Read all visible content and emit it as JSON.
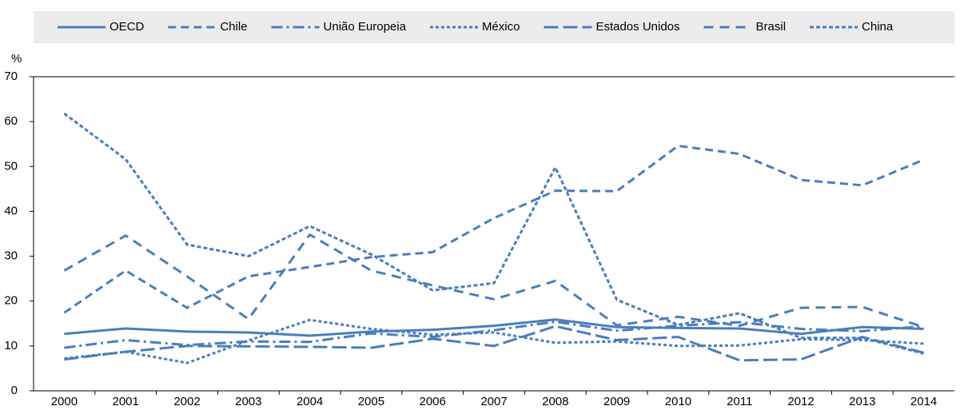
{
  "chart_data": {
    "type": "line",
    "y_unit": "%",
    "categories": [
      "2000",
      "2001",
      "2002",
      "2003",
      "2004",
      "2005",
      "2006",
      "2007",
      "2008",
      "2009",
      "2010",
      "2011",
      "2012",
      "2013",
      "2014"
    ],
    "ylim": [
      0,
      70
    ],
    "yticks": [
      0,
      10,
      20,
      30,
      40,
      50,
      60,
      70
    ],
    "grid": false,
    "legend": "top",
    "series": [
      {
        "name": "OECD",
        "color": "#4a7ebb",
        "dash": "",
        "values": [
          12.7,
          13.9,
          13.2,
          13,
          12.3,
          13.2,
          13.6,
          14.5,
          15.9,
          14.2,
          14,
          13.9,
          12.7,
          14.2,
          13.8
        ]
      },
      {
        "name": "Chile",
        "color": "#4a7ebb",
        "dash": "10,6",
        "values": [
          17.4,
          26.8,
          18.5,
          25.5,
          27.6,
          29.8,
          30.9,
          38.5,
          44.6,
          44.5,
          54.6,
          52.8,
          47,
          45.8,
          51.5
        ]
      },
      {
        "name": "União Europeia",
        "color": "#4a7ebb",
        "dash": "14,5,3,5",
        "values": [
          9.6,
          11.3,
          10.2,
          11,
          10.9,
          12.8,
          12,
          13.5,
          15.4,
          13.4,
          14.5,
          15.3,
          13.8,
          13.3,
          14.4
        ]
      },
      {
        "name": "México",
        "color": "#4a7ebb",
        "dash": "4,3",
        "values": [
          7.2,
          8.7,
          6.2,
          11.2,
          15.8,
          13.8,
          12.5,
          13,
          10.7,
          11,
          10,
          10.1,
          11.5,
          11.3,
          10.5
        ]
      },
      {
        "name": "Estados Unidos",
        "color": "#4a7ebb",
        "dash": "18,6",
        "values": [
          7,
          8.7,
          10,
          9.9,
          9.8,
          9.6,
          11.6,
          10,
          14.4,
          11.3,
          12,
          6.8,
          7,
          12,
          8.5
        ]
      },
      {
        "name": "Brasil",
        "color": "#4a7ebb",
        "dash": "12,8",
        "values": [
          26.8,
          34.6,
          25.5,
          16,
          34.8,
          26.8,
          23.5,
          20.4,
          24.5,
          14.6,
          16.5,
          14.5,
          18.5,
          18.7,
          14.2
        ]
      },
      {
        "name": "China",
        "color": "#4a7ebb",
        "dash": "5,3",
        "values": [
          61.8,
          51.6,
          32.6,
          30,
          36.7,
          30.4,
          22.4,
          24,
          49.8,
          20.3,
          14.7,
          17.3,
          11.8,
          11.8,
          8.3
        ]
      }
    ]
  }
}
